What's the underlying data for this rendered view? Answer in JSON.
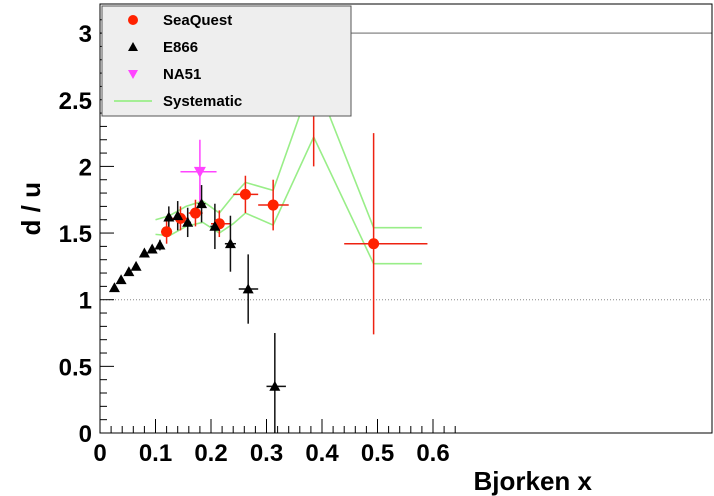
{
  "chart_data": {
    "type": "scatter",
    "xlabel": "Bjorken x",
    "ylabel": "d / u",
    "xlim": [
      0,
      0.65
    ],
    "ylim": [
      0,
      3.1
    ],
    "xticks": [
      "0",
      "0.1",
      "0.2",
      "0.3",
      "0.4",
      "0.5",
      "0.6"
    ],
    "yticks": [
      "0",
      "0.5",
      "1",
      "1.5",
      "2",
      "2.5",
      "3"
    ],
    "reference_line_y": 1,
    "legend": {
      "position": "top-left"
    },
    "series": [
      {
        "name": "SeaQuest",
        "marker": "circle",
        "color": "#ff2200",
        "points": [
          {
            "x": 0.12,
            "y": 1.51,
            "xlo": 0.11,
            "xhi": 0.13,
            "ylo": 1.42,
            "yhi": 1.6
          },
          {
            "x": 0.145,
            "y": 1.61,
            "xlo": 0.13,
            "xhi": 0.16,
            "ylo": 1.52,
            "yhi": 1.7
          },
          {
            "x": 0.172,
            "y": 1.65,
            "xlo": 0.16,
            "xhi": 0.185,
            "ylo": 1.55,
            "yhi": 1.75
          },
          {
            "x": 0.215,
            "y": 1.57,
            "xlo": 0.2,
            "xhi": 0.235,
            "ylo": 1.47,
            "yhi": 1.67
          },
          {
            "x": 0.262,
            "y": 1.79,
            "xlo": 0.24,
            "xhi": 0.285,
            "ylo": 1.65,
            "yhi": 1.93
          },
          {
            "x": 0.312,
            "y": 1.71,
            "xlo": 0.285,
            "xhi": 0.34,
            "ylo": 1.52,
            "yhi": 1.9
          },
          {
            "x": 0.385,
            "y": 2.5,
            "xlo": 0.34,
            "xhi": 0.44,
            "ylo": 2.0,
            "yhi": 2.99
          },
          {
            "x": 0.493,
            "y": 1.42,
            "xlo": 0.44,
            "xhi": 0.59,
            "ylo": 0.74,
            "yhi": 2.25
          }
        ]
      },
      {
        "name": "E866",
        "marker": "triangle-up",
        "color": "#000000",
        "points": [
          {
            "x": 0.026,
            "y": 1.09,
            "xlo": 0.026,
            "xhi": 0.026,
            "ylo": 1.07,
            "yhi": 1.11
          },
          {
            "x": 0.038,
            "y": 1.15,
            "xlo": 0.038,
            "xhi": 0.038,
            "ylo": 1.13,
            "yhi": 1.17
          },
          {
            "x": 0.052,
            "y": 1.21,
            "xlo": 0.052,
            "xhi": 0.052,
            "ylo": 1.19,
            "yhi": 1.23
          },
          {
            "x": 0.065,
            "y": 1.25,
            "xlo": 0.065,
            "xhi": 0.065,
            "ylo": 1.23,
            "yhi": 1.27
          },
          {
            "x": 0.08,
            "y": 1.35,
            "xlo": 0.08,
            "xhi": 0.08,
            "ylo": 1.33,
            "yhi": 1.37
          },
          {
            "x": 0.094,
            "y": 1.38,
            "xlo": 0.094,
            "xhi": 0.094,
            "ylo": 1.35,
            "yhi": 1.41
          },
          {
            "x": 0.108,
            "y": 1.41,
            "xlo": 0.108,
            "xhi": 0.108,
            "ylo": 1.37,
            "yhi": 1.45
          },
          {
            "x": 0.124,
            "y": 1.62,
            "xlo": 0.119,
            "xhi": 0.129,
            "ylo": 1.54,
            "yhi": 1.7
          },
          {
            "x": 0.14,
            "y": 1.63,
            "xlo": 0.135,
            "xhi": 0.145,
            "ylo": 1.52,
            "yhi": 1.74
          },
          {
            "x": 0.158,
            "y": 1.58,
            "xlo": 0.152,
            "xhi": 0.164,
            "ylo": 1.47,
            "yhi": 1.69
          },
          {
            "x": 0.183,
            "y": 1.72,
            "xlo": 0.176,
            "xhi": 0.19,
            "ylo": 1.58,
            "yhi": 1.86
          },
          {
            "x": 0.207,
            "y": 1.55,
            "xlo": 0.199,
            "xhi": 0.215,
            "ylo": 1.38,
            "yhi": 1.72
          },
          {
            "x": 0.235,
            "y": 1.42,
            "xlo": 0.225,
            "xhi": 0.245,
            "ylo": 1.21,
            "yhi": 1.63
          },
          {
            "x": 0.267,
            "y": 1.08,
            "xlo": 0.25,
            "xhi": 0.285,
            "ylo": 0.82,
            "yhi": 1.34
          },
          {
            "x": 0.315,
            "y": 0.35,
            "xlo": 0.3,
            "xhi": 0.335,
            "ylo": 0.0,
            "yhi": 0.75
          }
        ]
      },
      {
        "name": "NA51",
        "marker": "triangle-down",
        "color": "#ff44ff",
        "points": [
          {
            "x": 0.18,
            "y": 1.96,
            "xlo": 0.145,
            "xhi": 0.21,
            "ylo": 1.72,
            "yhi": 2.2
          }
        ]
      },
      {
        "name": "Systematic",
        "marker": "line",
        "color": "#99ee88",
        "bands": [
          {
            "x": [
              0.1,
              0.125,
              0.155,
              0.185,
              0.215,
              0.24,
              0.262,
              0.312,
              0.385,
              0.493,
              0.58
            ],
            "y": [
              1.6,
              1.63,
              1.7,
              1.74,
              1.65,
              1.78,
              1.88,
              1.82,
              2.68,
              1.54,
              1.54
            ]
          },
          {
            "x": [
              0.1,
              0.125,
              0.155,
              0.185,
              0.215,
              0.24,
              0.262,
              0.312,
              0.385,
              0.493,
              0.58
            ],
            "y": [
              1.49,
              1.48,
              1.55,
              1.58,
              1.5,
              1.57,
              1.65,
              1.56,
              2.22,
              1.27,
              1.27
            ]
          }
        ]
      }
    ]
  }
}
